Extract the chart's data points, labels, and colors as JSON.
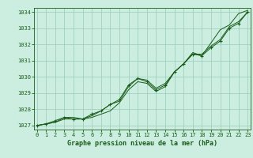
{
  "x": [
    0,
    1,
    2,
    3,
    4,
    5,
    6,
    7,
    8,
    9,
    10,
    11,
    12,
    13,
    14,
    15,
    16,
    17,
    18,
    19,
    20,
    21,
    22,
    23
  ],
  "line1": [
    1027.0,
    1027.1,
    1027.2,
    1027.4,
    1027.4,
    1027.4,
    1027.5,
    1027.7,
    1027.9,
    1028.4,
    1029.2,
    1029.7,
    1029.6,
    1029.1,
    1029.4,
    1030.3,
    1030.8,
    1031.5,
    1031.3,
    1032.1,
    1032.9,
    1033.2,
    1033.9,
    1034.1
  ],
  "line2": [
    1027.0,
    1027.1,
    1027.2,
    1027.5,
    1027.5,
    1027.4,
    1027.6,
    1027.9,
    1028.3,
    1028.5,
    1029.4,
    1029.9,
    1029.8,
    1029.3,
    1029.6,
    1030.3,
    1030.8,
    1031.4,
    1031.4,
    1031.9,
    1032.3,
    1033.1,
    1033.4,
    1034.0
  ],
  "line3": [
    1027.0,
    1027.1,
    1027.3,
    1027.5,
    1027.4,
    1027.4,
    1027.7,
    1027.9,
    1028.3,
    1028.6,
    1029.5,
    1029.9,
    1029.7,
    1029.2,
    1029.5,
    1030.3,
    1030.8,
    1031.4,
    1031.3,
    1031.8,
    1032.2,
    1033.0,
    1033.3,
    1034.0
  ],
  "line_color": "#1a5c1a",
  "bg_color": "#cceee0",
  "grid_color": "#99ccb8",
  "xlabel": "Graphe pression niveau de la mer (hPa)",
  "ylim": [
    1026.75,
    1034.25
  ],
  "yticks": [
    1027,
    1028,
    1029,
    1030,
    1031,
    1032,
    1033,
    1034
  ],
  "xticks": [
    0,
    1,
    2,
    3,
    4,
    5,
    6,
    7,
    8,
    9,
    10,
    11,
    12,
    13,
    14,
    15,
    16,
    17,
    18,
    19,
    20,
    21,
    22,
    23
  ]
}
